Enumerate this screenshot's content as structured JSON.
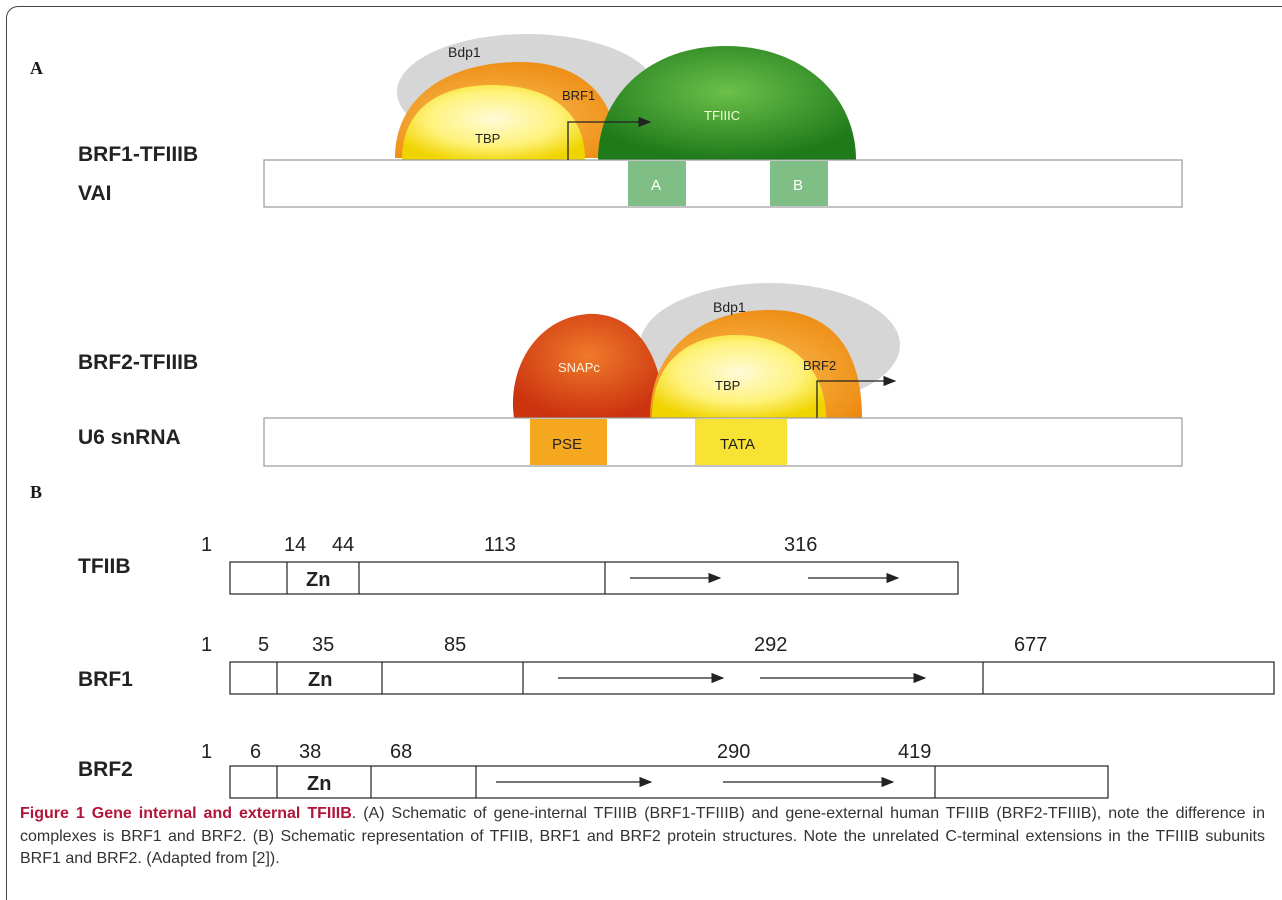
{
  "panel_a": {
    "letter": "A",
    "brf1": {
      "complex_label": "BRF1-TFIIIB",
      "gene_label": "VAI",
      "bdp1": "Bdp1",
      "brf1": "BRF1",
      "tbp": "TBP",
      "tfiiic": "TFIIIC",
      "box_a": "A",
      "box_b": "B"
    },
    "brf2": {
      "complex_label": "BRF2-TFIIIB",
      "gene_label": "U6 snRNA",
      "bdp1": "Bdp1",
      "brf2": "BRF2",
      "tbp": "TBP",
      "snapc": "SNAPc",
      "pse": "PSE",
      "tata": "TATA"
    }
  },
  "panel_b": {
    "letter": "B",
    "proteins": [
      {
        "name": "TFIIB",
        "positions": [
          "1",
          "14",
          "44",
          "113",
          "316"
        ],
        "domain": "Zn"
      },
      {
        "name": "BRF1",
        "positions": [
          "1",
          "5",
          "35",
          "85",
          "292",
          "677"
        ],
        "domain": "Zn"
      },
      {
        "name": "BRF2",
        "positions": [
          "1",
          "6",
          "38",
          "68",
          "290",
          "419"
        ],
        "domain": "Zn"
      }
    ]
  },
  "caption": {
    "title": "Figure 1 Gene internal and external TFIIIB",
    "text": ". (A) Schematic of gene-internal TFIIIB (BRF1-TFIIIB) and gene-external human TFIIIB (BRF2-TFIIIB), note the difference in complexes is BRF1 and BRF2. (B) Schematic representation of TFIIB, BRF1 and BRF2 protein structures. Note the unrelated C-terminal extensions in the TFIIIB subunits BRF1 and BRF2. (Adapted from [2])."
  },
  "colors": {
    "bdp1": "#d9d9d9",
    "brf": "#f2a01c",
    "tbp": "#fff06a",
    "tfiiic": "#3c9a25",
    "snapc": "#e0501a",
    "box_ab": "#7fbf85",
    "pse": "#f5a81f",
    "tata": "#f8e234",
    "caption_title": "#b3143a"
  }
}
